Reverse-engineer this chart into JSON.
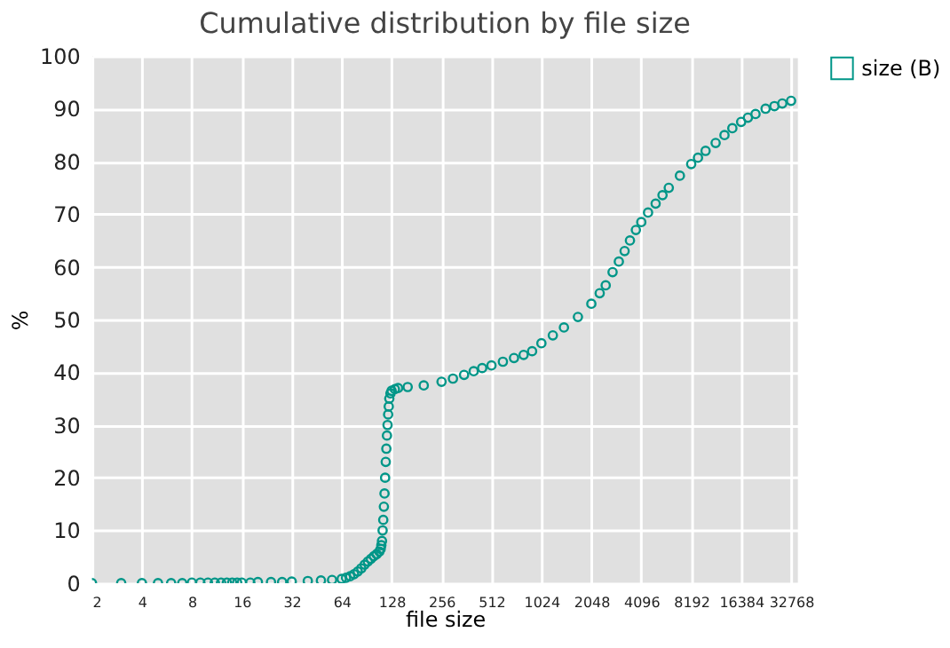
{
  "chart_data": {
    "type": "scatter",
    "title": "Cumulative distribution by file size",
    "xlabel": "file size",
    "ylabel": "%",
    "log": "x",
    "xlim": [
      2,
      36000
    ],
    "xticks": [
      2,
      4,
      8,
      16,
      32,
      64,
      128,
      256,
      512,
      1024,
      2048,
      4096,
      8192,
      16384,
      32768
    ],
    "ylim": [
      0,
      100
    ],
    "yticks": [
      0,
      10,
      20,
      30,
      40,
      50,
      60,
      70,
      80,
      90,
      100
    ],
    "grid": true,
    "legend": "top right",
    "marker": "circle",
    "series": [
      {
        "name": "size (B)",
        "color": "#009688",
        "x": [
          2,
          3,
          4,
          5,
          6,
          7,
          8,
          9,
          10,
          11,
          12,
          13,
          14,
          15,
          16,
          18,
          20,
          24,
          28,
          32,
          40,
          48,
          56,
          64,
          68,
          72,
          76,
          80,
          84,
          88,
          92,
          96,
          100,
          104,
          108,
          110,
          111,
          112,
          113,
          114,
          115,
          116,
          117,
          118,
          119,
          120,
          121,
          122,
          123,
          124,
          126,
          128,
          134,
          140,
          160,
          200,
          256,
          300,
          350,
          400,
          450,
          512,
          600,
          700,
          800,
          900,
          1024,
          1200,
          1400,
          1700,
          2048,
          2300,
          2500,
          2750,
          3000,
          3250,
          3500,
          3800,
          4096,
          4500,
          5000,
          5500,
          6000,
          7000,
          8192,
          9000,
          10000,
          11500,
          13000,
          14500,
          16384,
          18000,
          20000,
          23000,
          26000,
          29000,
          32768
        ],
        "values": [
          0,
          0,
          0,
          0,
          0,
          0,
          0.1,
          0.1,
          0.1,
          0.1,
          0.1,
          0.1,
          0.1,
          0.1,
          0.1,
          0.1,
          0.2,
          0.2,
          0.2,
          0.3,
          0.4,
          0.5,
          0.6,
          0.8,
          1.0,
          1.3,
          1.7,
          2.2,
          2.8,
          3.5,
          4.1,
          4.6,
          5.1,
          5.5,
          6.0,
          6.5,
          7.2,
          8,
          10,
          12,
          14.5,
          17,
          20,
          23,
          25.5,
          28,
          30,
          32,
          33.5,
          35,
          36,
          36.5,
          36.8,
          37,
          37.2,
          37.5,
          38.2,
          38.8,
          39.5,
          40.2,
          40.8,
          41.3,
          42,
          42.7,
          43.3,
          44,
          45.5,
          47,
          48.5,
          50.5,
          53,
          55,
          56.5,
          59,
          61,
          63,
          65,
          67,
          68.5,
          70.3,
          72,
          73.6,
          75,
          77.3,
          79.5,
          80.7,
          82,
          83.5,
          85,
          86.3,
          87.5,
          88.3,
          89,
          90,
          90.5,
          91,
          91.5
        ]
      }
    ]
  }
}
